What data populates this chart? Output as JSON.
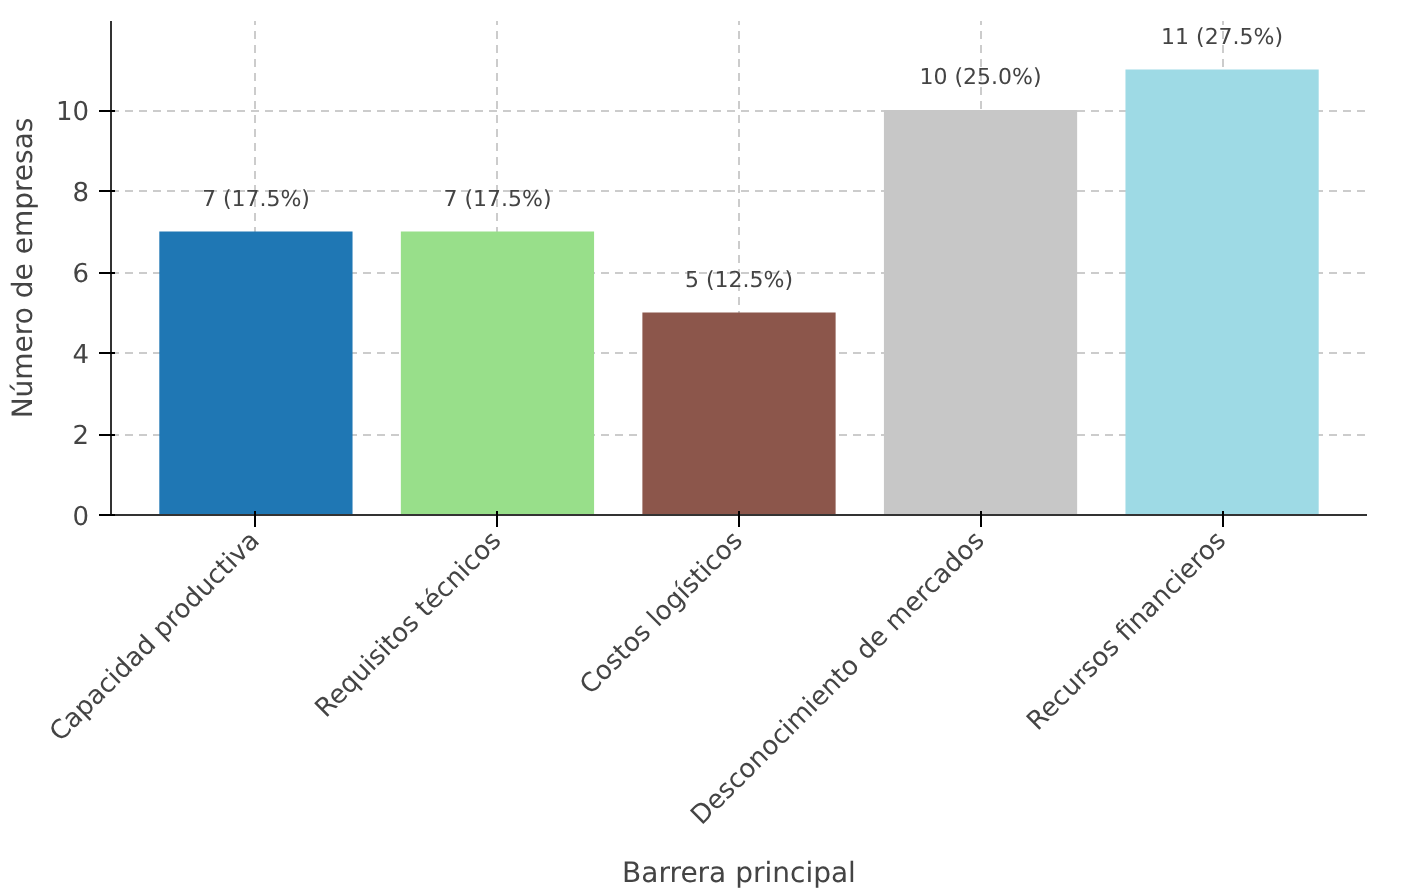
{
  "chart_data": {
    "type": "bar",
    "xlabel": "Barrera principal",
    "ylabel": "Número de empresas",
    "categories": [
      "Capacidad productiva",
      "Requisitos técnicos",
      "Costos logísticos",
      "Desconocimiento de mercados",
      "Recursos financieros"
    ],
    "values": [
      7,
      7,
      5,
      10,
      11
    ],
    "colors": [
      "#1f77b4",
      "#98df8a",
      "#8c564b",
      "#c7c7c7",
      "#9edae5"
    ],
    "value_labels": [
      "7 (17.5%)",
      "7 (17.5%)",
      "5 (12.5%)",
      "10 (25.0%)",
      "11 (27.5%)"
    ],
    "ylim": [
      0,
      12.2
    ],
    "yticks": [
      0,
      2,
      4,
      6,
      8,
      10
    ],
    "grid": true
  }
}
